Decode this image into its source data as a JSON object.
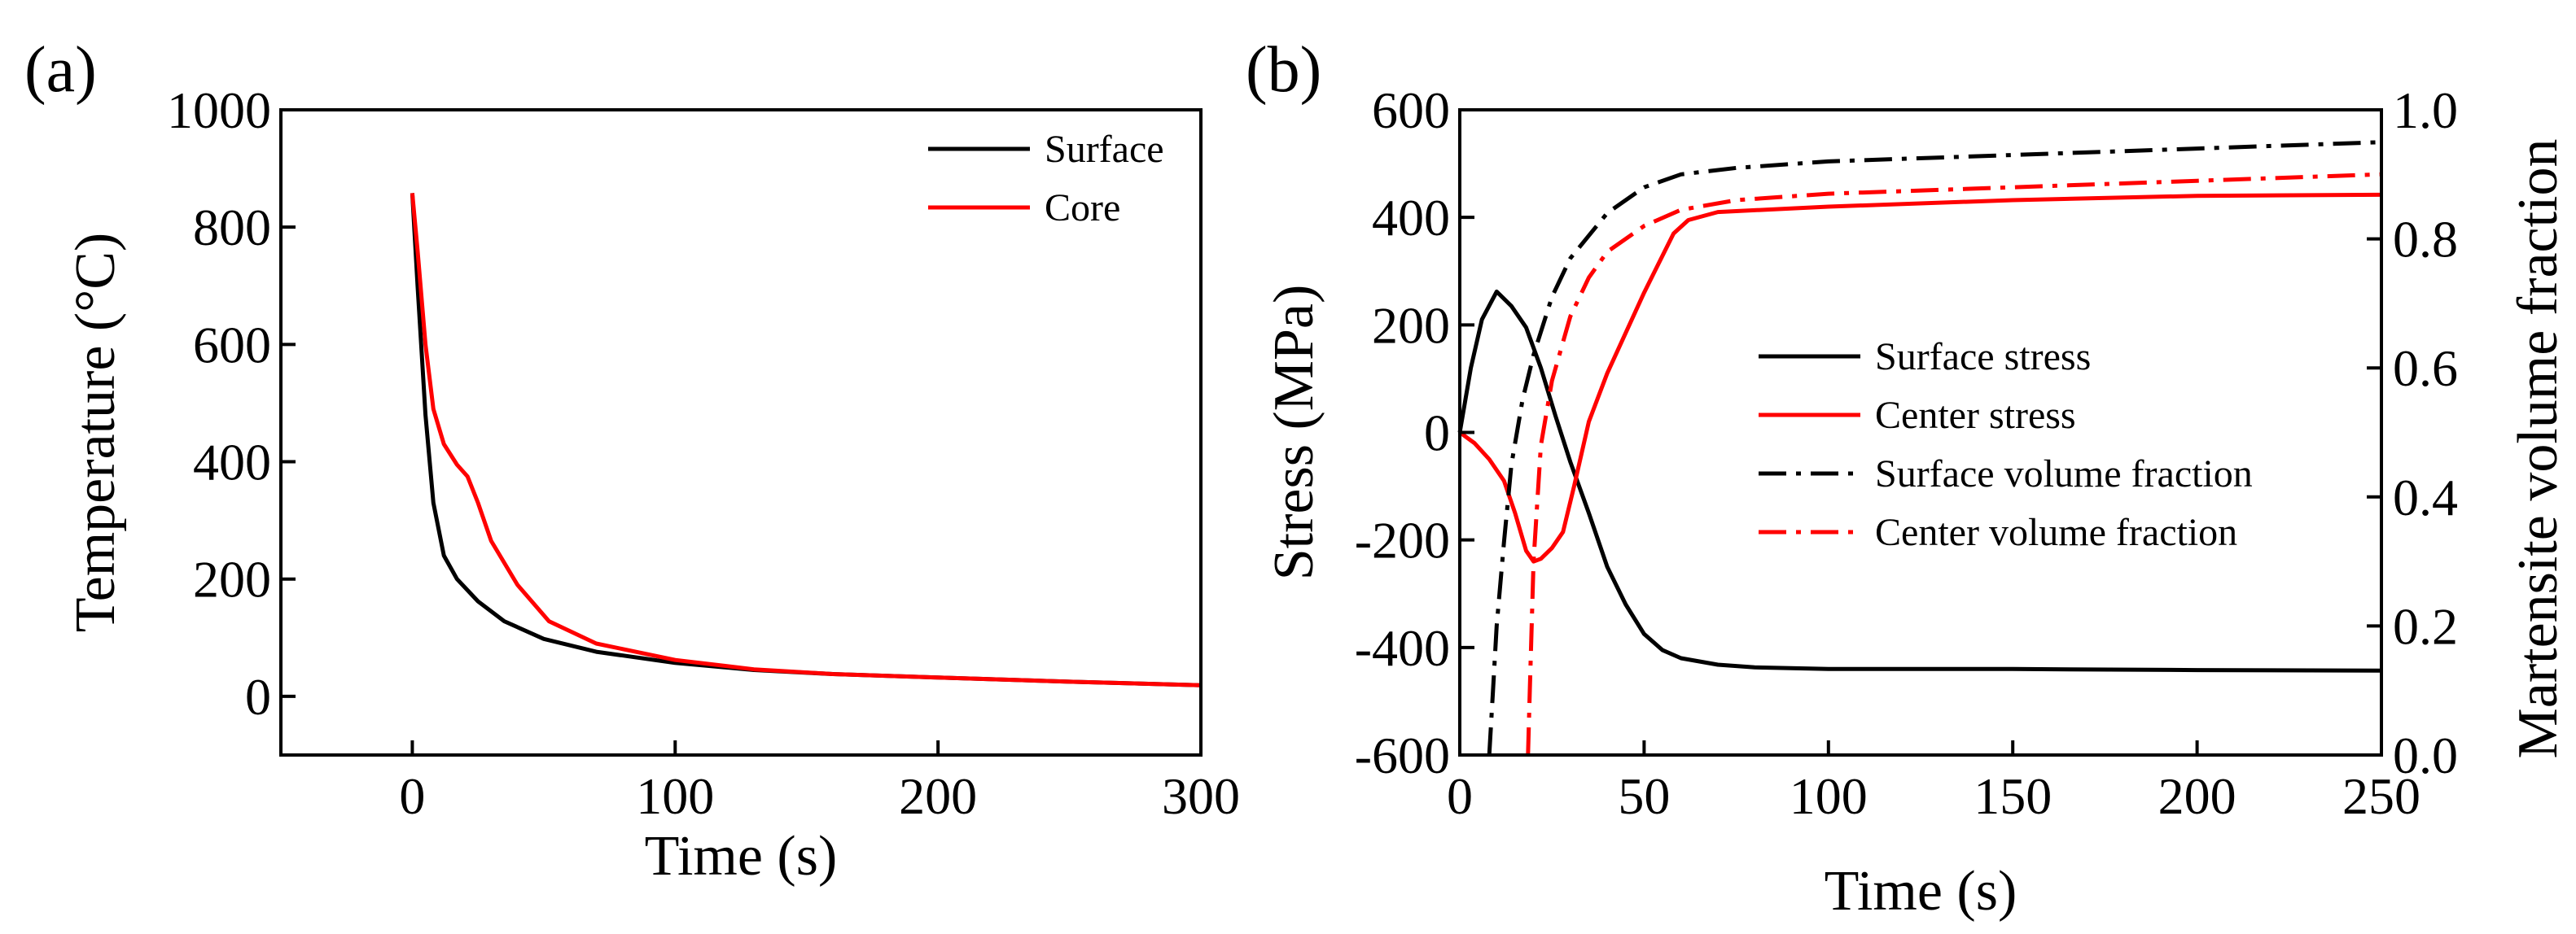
{
  "chart_data": [
    {
      "type": "line",
      "panel_label": "(a)",
      "title": "",
      "xlabel": "Time (s)",
      "ylabel": "Temperature (°C)",
      "xlim": [
        -50,
        300
      ],
      "ylim": [
        -100,
        1000
      ],
      "xticks": [
        0,
        100,
        200,
        300
      ],
      "yticks": [
        0,
        200,
        400,
        600,
        800,
        1000
      ],
      "grid": false,
      "legend": "top-right",
      "series": [
        {
          "name": "Surface",
          "color": "#000000",
          "style": "solid",
          "x": [
            0,
            2,
            5,
            8,
            12,
            17,
            25,
            35,
            50,
            70,
            100,
            130,
            160,
            200,
            250,
            300
          ],
          "y": [
            858,
            700,
            480,
            330,
            240,
            200,
            162,
            128,
            98,
            76,
            57,
            45,
            38,
            32,
            25,
            19
          ]
        },
        {
          "name": "Core",
          "color": "#ff0000",
          "style": "solid",
          "x": [
            0,
            2,
            5,
            8,
            12,
            17,
            21,
            25,
            30,
            40,
            52,
            70,
            100,
            130,
            160,
            200,
            250,
            300
          ],
          "y": [
            858,
            760,
            600,
            490,
            430,
            395,
            375,
            330,
            265,
            190,
            128,
            90,
            62,
            46,
            38,
            32,
            25,
            19
          ]
        }
      ]
    },
    {
      "type": "line",
      "panel_label": "(b)",
      "title": "",
      "xlabel": "Time (s)",
      "ylabel": "Stress (MPa)",
      "y2label": "Martensite volume fraction",
      "xlim": [
        0,
        250
      ],
      "ylim": [
        -600,
        600
      ],
      "y2lim": [
        0.0,
        1.0
      ],
      "xticks": [
        0,
        50,
        100,
        150,
        200,
        250
      ],
      "yticks": [
        -600,
        -400,
        -200,
        0,
        200,
        400,
        600
      ],
      "y2ticks": [
        0.0,
        0.2,
        0.4,
        0.6,
        0.8,
        1.0
      ],
      "y2ticklabels": [
        "0.0",
        "0.2",
        "0.4",
        "0.6",
        "0.8",
        "1.0"
      ],
      "grid": false,
      "legend": "center-right",
      "series": [
        {
          "name": "Surface stress",
          "axis": "left",
          "color": "#000000",
          "style": "solid",
          "x": [
            0,
            3,
            6,
            10,
            14,
            18,
            22,
            26,
            30,
            35,
            40,
            45,
            50,
            55,
            60,
            70,
            80,
            100,
            150,
            200,
            250
          ],
          "y": [
            0,
            120,
            210,
            262,
            235,
            195,
            120,
            30,
            -55,
            -150,
            -250,
            -320,
            -375,
            -405,
            -420,
            -432,
            -437,
            -440,
            -440,
            -442,
            -443
          ]
        },
        {
          "name": "Center stress",
          "axis": "left",
          "color": "#ff0000",
          "style": "solid",
          "x": [
            0,
            4,
            8,
            12,
            15,
            18,
            20,
            22,
            25,
            28,
            31,
            35,
            40,
            50,
            58,
            62,
            70,
            100,
            150,
            200,
            250
          ],
          "y": [
            0,
            -20,
            -50,
            -90,
            -150,
            -220,
            -240,
            -235,
            -215,
            -185,
            -100,
            20,
            110,
            260,
            370,
            395,
            410,
            420,
            432,
            440,
            442
          ]
        },
        {
          "name": "Surface volume fraction",
          "axis": "right",
          "color": "#000000",
          "style": "dashdot",
          "x": [
            8,
            9,
            10,
            12,
            14,
            17,
            20,
            25,
            30,
            40,
            50,
            60,
            75,
            100,
            150,
            200,
            250
          ],
          "y": [
            0.0,
            0.1,
            0.2,
            0.33,
            0.45,
            0.55,
            0.62,
            0.71,
            0.77,
            0.84,
            0.88,
            0.9,
            0.91,
            0.92,
            0.93,
            0.94,
            0.95
          ]
        },
        {
          "name": "Center volume fraction",
          "axis": "right",
          "color": "#ff0000",
          "style": "dashdot",
          "x": [
            18.5,
            19,
            20,
            22,
            25,
            30,
            35,
            40,
            50,
            60,
            75,
            100,
            150,
            200,
            250
          ],
          "y": [
            0.0,
            0.1,
            0.3,
            0.48,
            0.58,
            0.68,
            0.74,
            0.78,
            0.82,
            0.845,
            0.86,
            0.87,
            0.88,
            0.89,
            0.9
          ]
        }
      ]
    }
  ]
}
